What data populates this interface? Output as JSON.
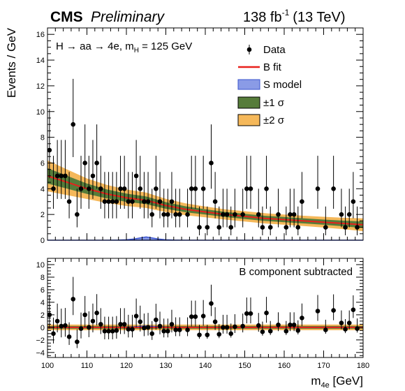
{
  "header": {
    "experiment": "CMS",
    "status": "Preliminary",
    "lumi_value": "138 fb",
    "lumi_exponent": "-1",
    "energy": "(13 TeV)"
  },
  "colors": {
    "data": "#000000",
    "bfit": "#e8201b",
    "smodel_fill": "#8a9be6",
    "smodel_line": "#3b55cf",
    "sigma1": "#567c3a",
    "sigma2": "#f5b85a"
  },
  "chart_data": [
    {
      "type": "scatter",
      "panel": "main",
      "annotation": {
        "main": "H → aa → 4e, m",
        "sub": "H",
        "tail": " = 125 GeV"
      },
      "ylabel": "Events / GeV",
      "xlim": [
        100,
        180
      ],
      "ylim": [
        0,
        16.5
      ],
      "yticks": [
        "0",
        "2",
        "4",
        "6",
        "8",
        "10",
        "12",
        "14",
        "16"
      ],
      "legend_position": "top-right",
      "legend": [
        {
          "key": "data",
          "label": "Data"
        },
        {
          "key": "bfit",
          "label": "B fit"
        },
        {
          "key": "smodel",
          "label": "S model"
        },
        {
          "key": "sigma1",
          "label": "±1 σ"
        },
        {
          "key": "sigma2",
          "label": "±2 σ"
        }
      ],
      "series": [
        {
          "name": "Data",
          "points": [
            [
              100.5,
              7
            ],
            [
              101.5,
              4
            ],
            [
              102.5,
              5
            ],
            [
              103.5,
              5
            ],
            [
              104.5,
              5
            ],
            [
              105.5,
              3
            ],
            [
              106.5,
              9
            ],
            [
              107.5,
              2
            ],
            [
              108.5,
              4
            ],
            [
              109.5,
              6
            ],
            [
              110.5,
              4
            ],
            [
              111.5,
              5
            ],
            [
              112.5,
              6
            ],
            [
              113.5,
              4
            ],
            [
              114.5,
              3
            ],
            [
              115.5,
              3
            ],
            [
              116.5,
              3
            ],
            [
              117.5,
              3
            ],
            [
              118.5,
              4
            ],
            [
              119.5,
              4
            ],
            [
              120.5,
              3
            ],
            [
              121.5,
              3
            ],
            [
              122.5,
              5
            ],
            [
              123.5,
              4
            ],
            [
              124.5,
              3
            ],
            [
              125.5,
              3
            ],
            [
              126.5,
              2
            ],
            [
              127.5,
              4
            ],
            [
              128.5,
              3
            ],
            [
              129.5,
              2
            ],
            [
              130.5,
              2
            ],
            [
              131.5,
              3
            ],
            [
              132.5,
              2
            ],
            [
              133.5,
              2
            ],
            [
              135.5,
              2
            ],
            [
              136.5,
              4
            ],
            [
              137.5,
              4
            ],
            [
              138.5,
              1
            ],
            [
              139.5,
              4
            ],
            [
              140.5,
              1
            ],
            [
              141.5,
              6
            ],
            [
              142.5,
              3
            ],
            [
              143.5,
              1
            ],
            [
              144.5,
              2
            ],
            [
              145.5,
              2
            ],
            [
              146.5,
              1
            ],
            [
              147.5,
              2
            ],
            [
              149.5,
              2
            ],
            [
              150.5,
              4
            ],
            [
              151.5,
              4
            ],
            [
              153.5,
              2
            ],
            [
              154.5,
              1
            ],
            [
              155.5,
              4
            ],
            [
              156.5,
              1
            ],
            [
              158.5,
              2
            ],
            [
              160.5,
              1
            ],
            [
              161.5,
              2
            ],
            [
              162.5,
              2
            ],
            [
              163.5,
              1
            ],
            [
              164.5,
              3
            ],
            [
              168.5,
              4
            ],
            [
              170.5,
              1
            ],
            [
              172.5,
              4
            ],
            [
              174.5,
              2
            ],
            [
              175.5,
              1
            ],
            [
              176.5,
              2
            ],
            [
              177.5,
              3
            ],
            [
              178.5,
              1
            ]
          ]
        },
        {
          "name": "B fit",
          "x": [
            100,
            105,
            110,
            115,
            120,
            125,
            130,
            135,
            140,
            145,
            150,
            155,
            160,
            165,
            170,
            175,
            180
          ],
          "y": [
            5.0,
            4.5,
            4.0,
            3.6,
            3.3,
            3.1,
            2.7,
            2.4,
            2.2,
            2.0,
            1.85,
            1.7,
            1.6,
            1.5,
            1.4,
            1.3,
            1.2
          ],
          "sigma1": [
            0.6,
            0.5,
            0.4,
            0.35,
            0.32,
            0.3,
            0.26,
            0.23,
            0.2,
            0.2,
            0.2,
            0.2,
            0.2,
            0.2,
            0.2,
            0.22,
            0.25
          ],
          "sigma2": [
            1.2,
            1.0,
            0.8,
            0.7,
            0.64,
            0.6,
            0.52,
            0.46,
            0.42,
            0.4,
            0.4,
            0.4,
            0.4,
            0.4,
            0.42,
            0.44,
            0.5
          ]
        },
        {
          "name": "S model",
          "x": [
            100,
            115,
            118,
            120,
            122,
            124,
            125,
            126,
            128,
            130,
            132,
            135,
            180
          ],
          "y": [
            0,
            0,
            0.01,
            0.03,
            0.09,
            0.2,
            0.25,
            0.2,
            0.09,
            0.03,
            0.01,
            0,
            0
          ]
        }
      ]
    },
    {
      "type": "scatter",
      "panel": "ratio",
      "annotation": "B component subtracted",
      "xlabel": "m",
      "xlabel_sub": "4e",
      "xlabel_unit": " [GeV]",
      "xlim": [
        100,
        180
      ],
      "xticks": [
        "100",
        "110",
        "120",
        "130",
        "140",
        "150",
        "160",
        "170",
        "180"
      ],
      "ylim": [
        -4.8,
        11
      ],
      "yticks": [
        "−4",
        "−2",
        "0",
        "2",
        "4",
        "6",
        "8",
        "10"
      ],
      "series": [
        {
          "name": "Data",
          "points": [
            [
              100.5,
              2.0
            ],
            [
              101.5,
              -1.0
            ],
            [
              102.5,
              1.0
            ],
            [
              103.5,
              0.2
            ],
            [
              104.5,
              0.3
            ],
            [
              105.5,
              -1.5
            ],
            [
              106.5,
              4.5
            ],
            [
              107.5,
              -2.3
            ],
            [
              108.5,
              -0.2
            ],
            [
              109.5,
              2.0
            ],
            [
              110.5,
              0.0
            ],
            [
              111.5,
              1.0
            ],
            [
              112.5,
              2.3
            ],
            [
              113.5,
              0.5
            ],
            [
              114.5,
              -0.6
            ],
            [
              115.5,
              -0.6
            ],
            [
              116.5,
              -0.6
            ],
            [
              117.5,
              -0.5
            ],
            [
              118.5,
              0.5
            ],
            [
              119.5,
              0.5
            ],
            [
              120.5,
              -0.3
            ],
            [
              121.5,
              -0.3
            ],
            [
              122.5,
              1.8
            ],
            [
              123.5,
              0.9
            ],
            [
              124.5,
              -0.1
            ],
            [
              125.5,
              0.0
            ],
            [
              126.5,
              -1.0
            ],
            [
              127.5,
              1.2
            ],
            [
              128.5,
              0.2
            ],
            [
              129.5,
              -0.6
            ],
            [
              130.5,
              -0.6
            ],
            [
              131.5,
              0.5
            ],
            [
              132.5,
              -0.4
            ],
            [
              133.5,
              -0.4
            ],
            [
              135.5,
              -0.4
            ],
            [
              136.5,
              1.7
            ],
            [
              137.5,
              1.7
            ],
            [
              138.5,
              -1.2
            ],
            [
              139.5,
              1.8
            ],
            [
              140.5,
              -1.2
            ],
            [
              141.5,
              3.8
            ],
            [
              142.5,
              0.9
            ],
            [
              143.5,
              -1.1
            ],
            [
              144.5,
              0.0
            ],
            [
              145.5,
              0.0
            ],
            [
              146.5,
              -1.0
            ],
            [
              147.5,
              0.1
            ],
            [
              149.5,
              0.2
            ],
            [
              150.5,
              2.2
            ],
            [
              151.5,
              2.2
            ],
            [
              153.5,
              0.3
            ],
            [
              154.5,
              -0.7
            ],
            [
              155.5,
              2.3
            ],
            [
              156.5,
              -0.6
            ],
            [
              158.5,
              0.4
            ],
            [
              160.5,
              -0.6
            ],
            [
              161.5,
              0.4
            ],
            [
              162.5,
              0.4
            ],
            [
              163.5,
              -0.5
            ],
            [
              164.5,
              1.5
            ],
            [
              168.5,
              2.6
            ],
            [
              170.5,
              -0.4
            ],
            [
              172.5,
              2.7
            ],
            [
              174.5,
              0.7
            ],
            [
              175.5,
              -0.3
            ],
            [
              176.5,
              0.7
            ],
            [
              177.5,
              2.8
            ],
            [
              178.5,
              -0.2
            ]
          ]
        }
      ]
    }
  ]
}
